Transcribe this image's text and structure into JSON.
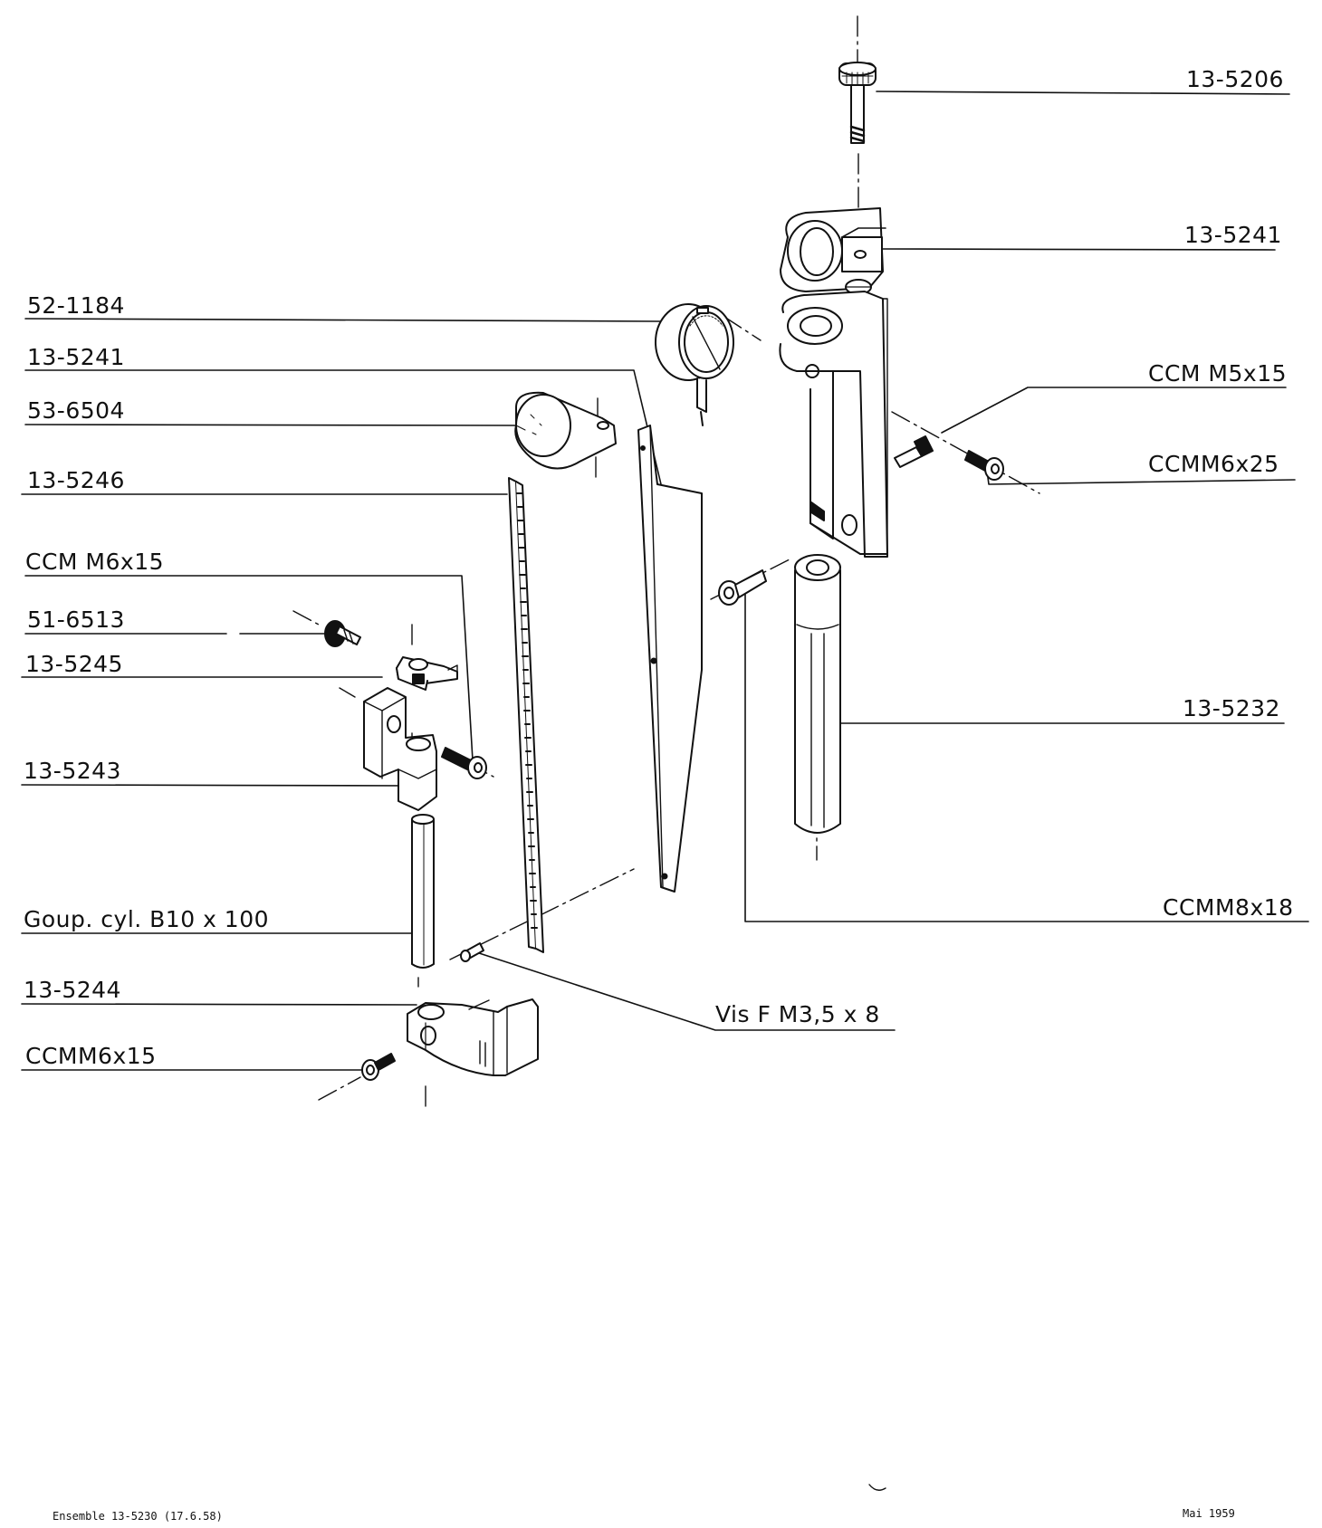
{
  "labels": {
    "part_13_5206": "13-5206",
    "part_13_5241_top": "13-5241",
    "part_ccm_m5x15": "CCM M5x15",
    "part_ccm_m6x25": "CCMM6x25",
    "part_13_5232": "13-5232",
    "part_ccm_m8x18": "CCMM8x18",
    "part_vis_f": "Vis F M3,5 x 8",
    "part_52_1184": "52-1184",
    "part_13_5241_left": "13-5241",
    "part_53_6504": "53-6504",
    "part_13_5246": "13-5246",
    "part_ccm_m6x15_a": "CCM M6x15",
    "part_51_6513": "51-6513",
    "part_13_5245": "13-5245",
    "part_13_5243": "13-5243",
    "part_goupille": "Goup. cyl. B10 x 100",
    "part_13_5244": "13-5244",
    "part_ccm_m6x15_b": "CCMM6x15"
  },
  "footer": {
    "assembly": "Ensemble 13-5230 (17.6.58)",
    "date": "Mai 1959"
  }
}
